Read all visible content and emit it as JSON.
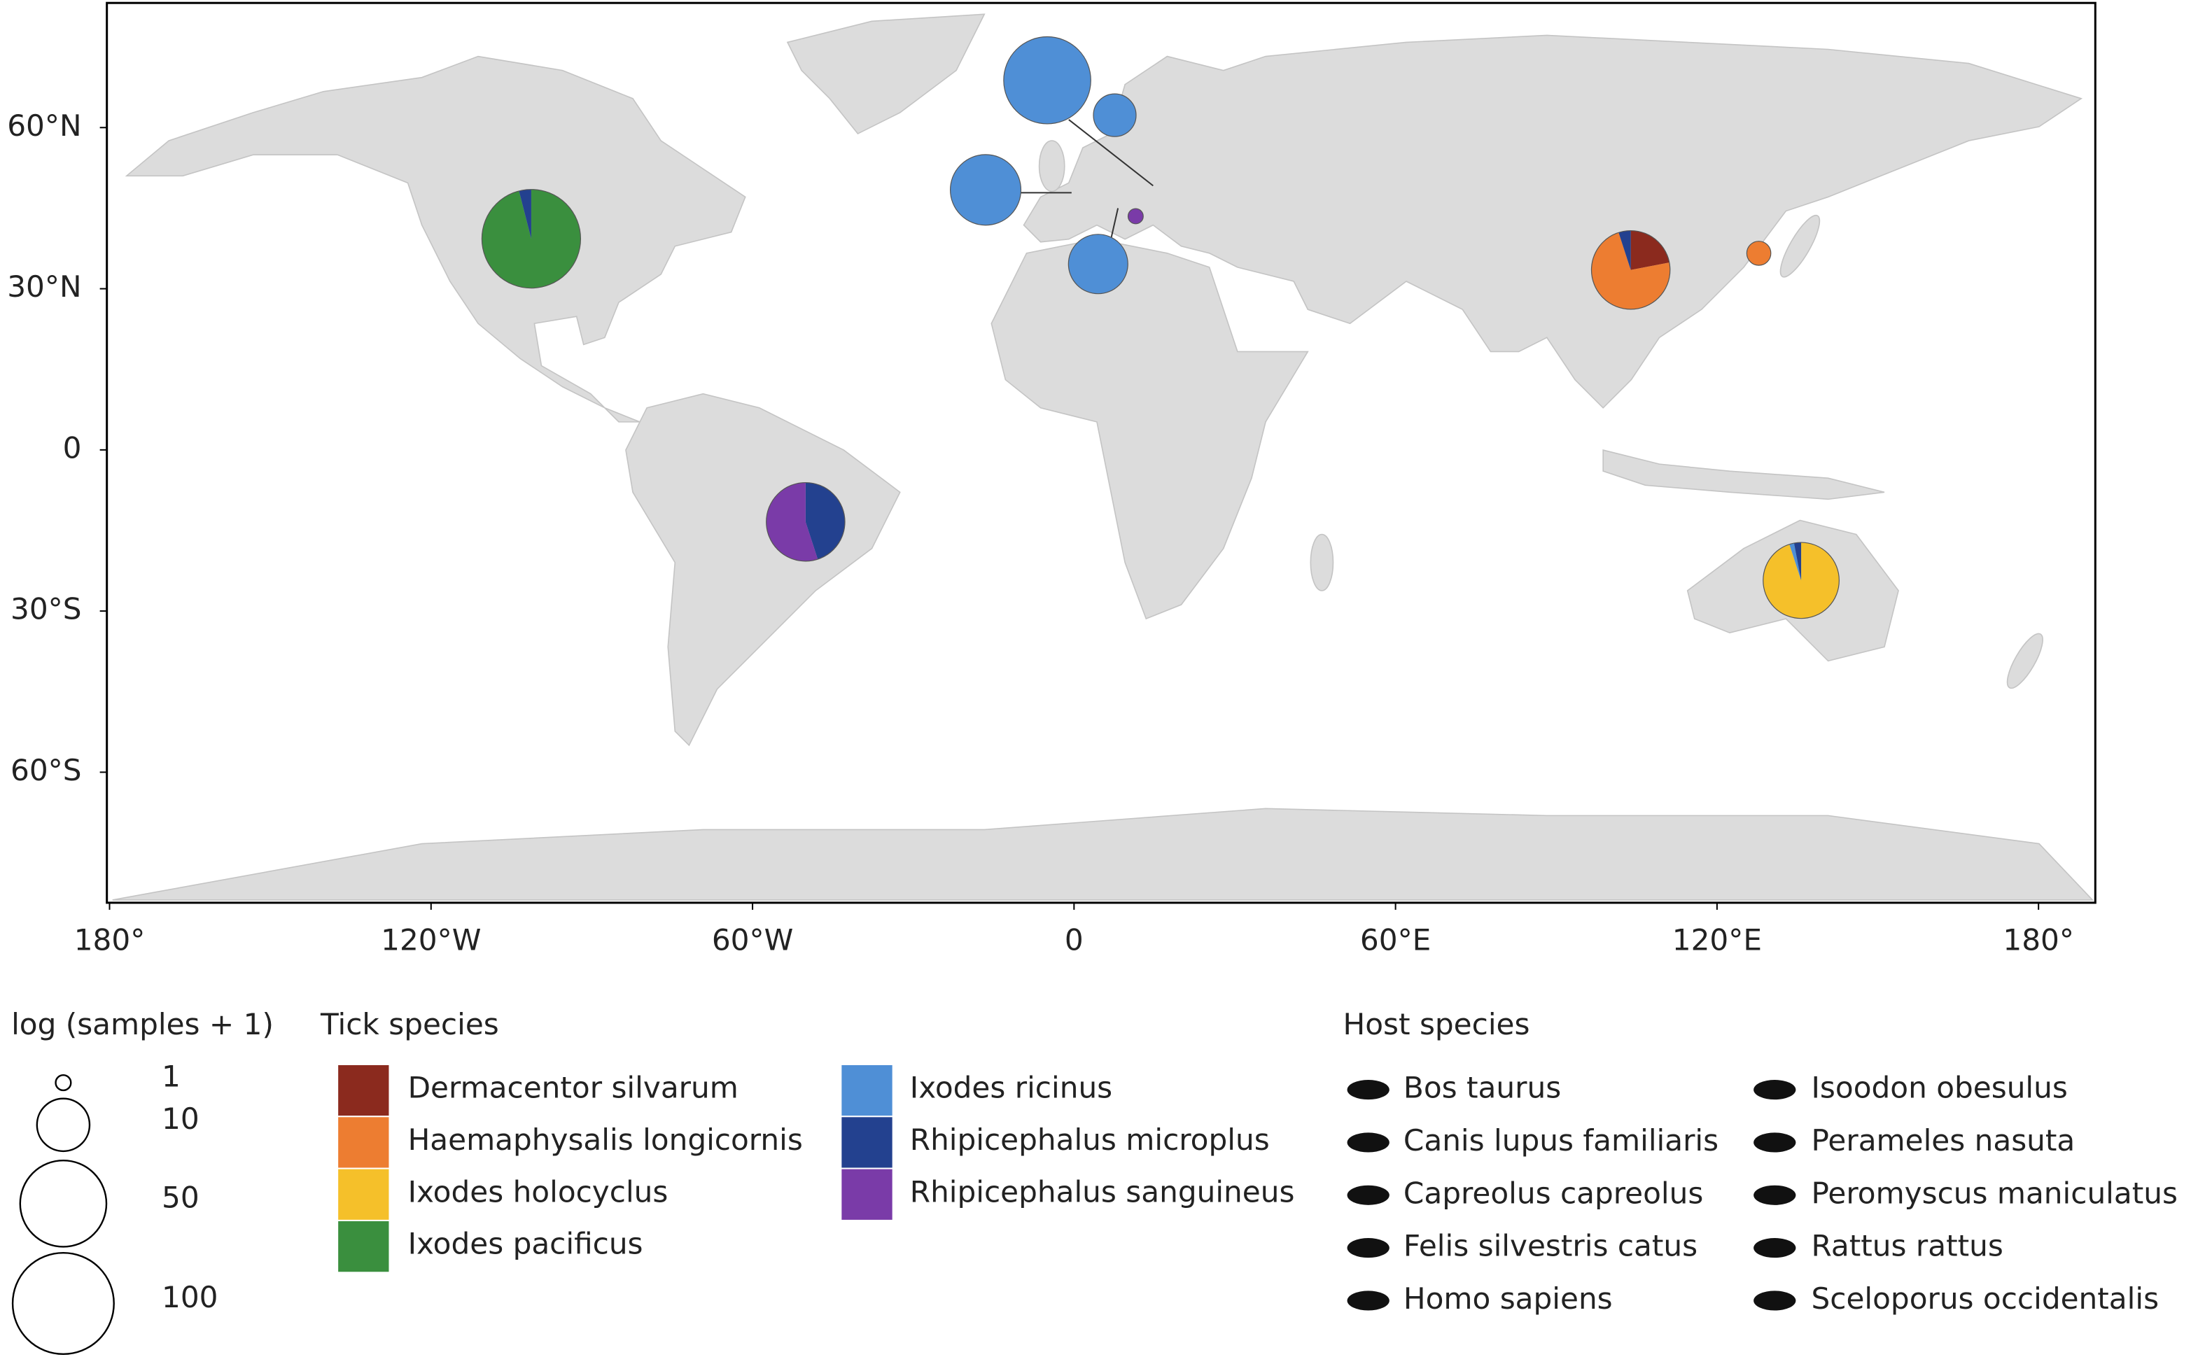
{
  "chart_data": {
    "type": "pie-map",
    "xlim": [
      -180.5,
      190.6
    ],
    "ylim": [
      -84.3,
      83.2
    ],
    "xticks": [
      {
        "value": -180,
        "label": "180°"
      },
      {
        "value": -120,
        "label": "120°W"
      },
      {
        "value": -60,
        "label": "60°W"
      },
      0,
      {
        "value": 60,
        "label": "60°E"
      },
      {
        "value": 120,
        "label": "120°E"
      },
      {
        "value": 180,
        "label": "180°"
      }
    ],
    "yticks": [
      {
        "value": 60,
        "label": "60°N"
      },
      {
        "value": 30,
        "label": "30°N"
      },
      0,
      {
        "value": -30,
        "label": "30°S"
      },
      {
        "value": -60,
        "label": "60°S"
      }
    ],
    "lon": [
      -101.3,
      -5.0,
      7.6,
      -16.5,
      4.5,
      11.5,
      103.9,
      127.8,
      -50.1,
      135.7
    ],
    "lat": [
      39.3,
      68.8,
      62.3,
      48.4,
      34.6,
      43.5,
      33.5,
      36.6,
      -13.4,
      -24.3
    ],
    "samples": [
      89,
      52,
      6,
      24,
      14,
      1,
      35,
      2,
      35,
      31
    ],
    "size_legend": {
      "title": "log (samples + 1)",
      "values": [
        1,
        10,
        50,
        100
      ]
    },
    "legend_title": "Tick species",
    "series": [
      {
        "name": "Dermacentor silvarum",
        "color": "#8b2a1e",
        "values": [
          0,
          0,
          0,
          0,
          0,
          0,
          22,
          0,
          0,
          0
        ]
      },
      {
        "name": "Haemaphysalis longicornis",
        "color": "#ed7d31",
        "values": [
          0,
          0,
          0,
          0,
          0,
          0,
          73,
          100,
          0,
          0
        ]
      },
      {
        "name": "Ixodes holocyclus",
        "color": "#f5c02a",
        "values": [
          0,
          0,
          0,
          0,
          0,
          0,
          0,
          0,
          0,
          95
        ]
      },
      {
        "name": "Ixodes pacificus",
        "color": "#3a8f3e",
        "values": [
          96,
          0,
          0,
          0,
          0,
          0,
          0,
          0,
          0,
          0
        ]
      },
      {
        "name": "Ixodes ricinus",
        "color": "#4f8fd6",
        "values": [
          0,
          100,
          100,
          100,
          100,
          0,
          0,
          0,
          0,
          2
        ]
      },
      {
        "name": "Rhipicephalus microplus",
        "color": "#23418f",
        "values": [
          4,
          0,
          0,
          0,
          0,
          0,
          5,
          0,
          45,
          3
        ]
      },
      {
        "name": "Rhipicephalus sanguineus",
        "color": "#7a3ba8",
        "values": [
          0,
          0,
          0,
          0,
          0,
          100,
          0,
          0,
          55,
          0
        ]
      }
    ],
    "host_title": "Host species",
    "hosts": [
      "Bos taurus",
      "Canis lupus familiaris",
      "Capreolus capreolus",
      "Felis silvestris catus",
      "Homo sapiens",
      "Isoodon obesulus",
      "Perameles nasuta",
      "Peromyscus maniculatus",
      "Rattus rattus",
      "Sceloporus occidentalis"
    ]
  }
}
